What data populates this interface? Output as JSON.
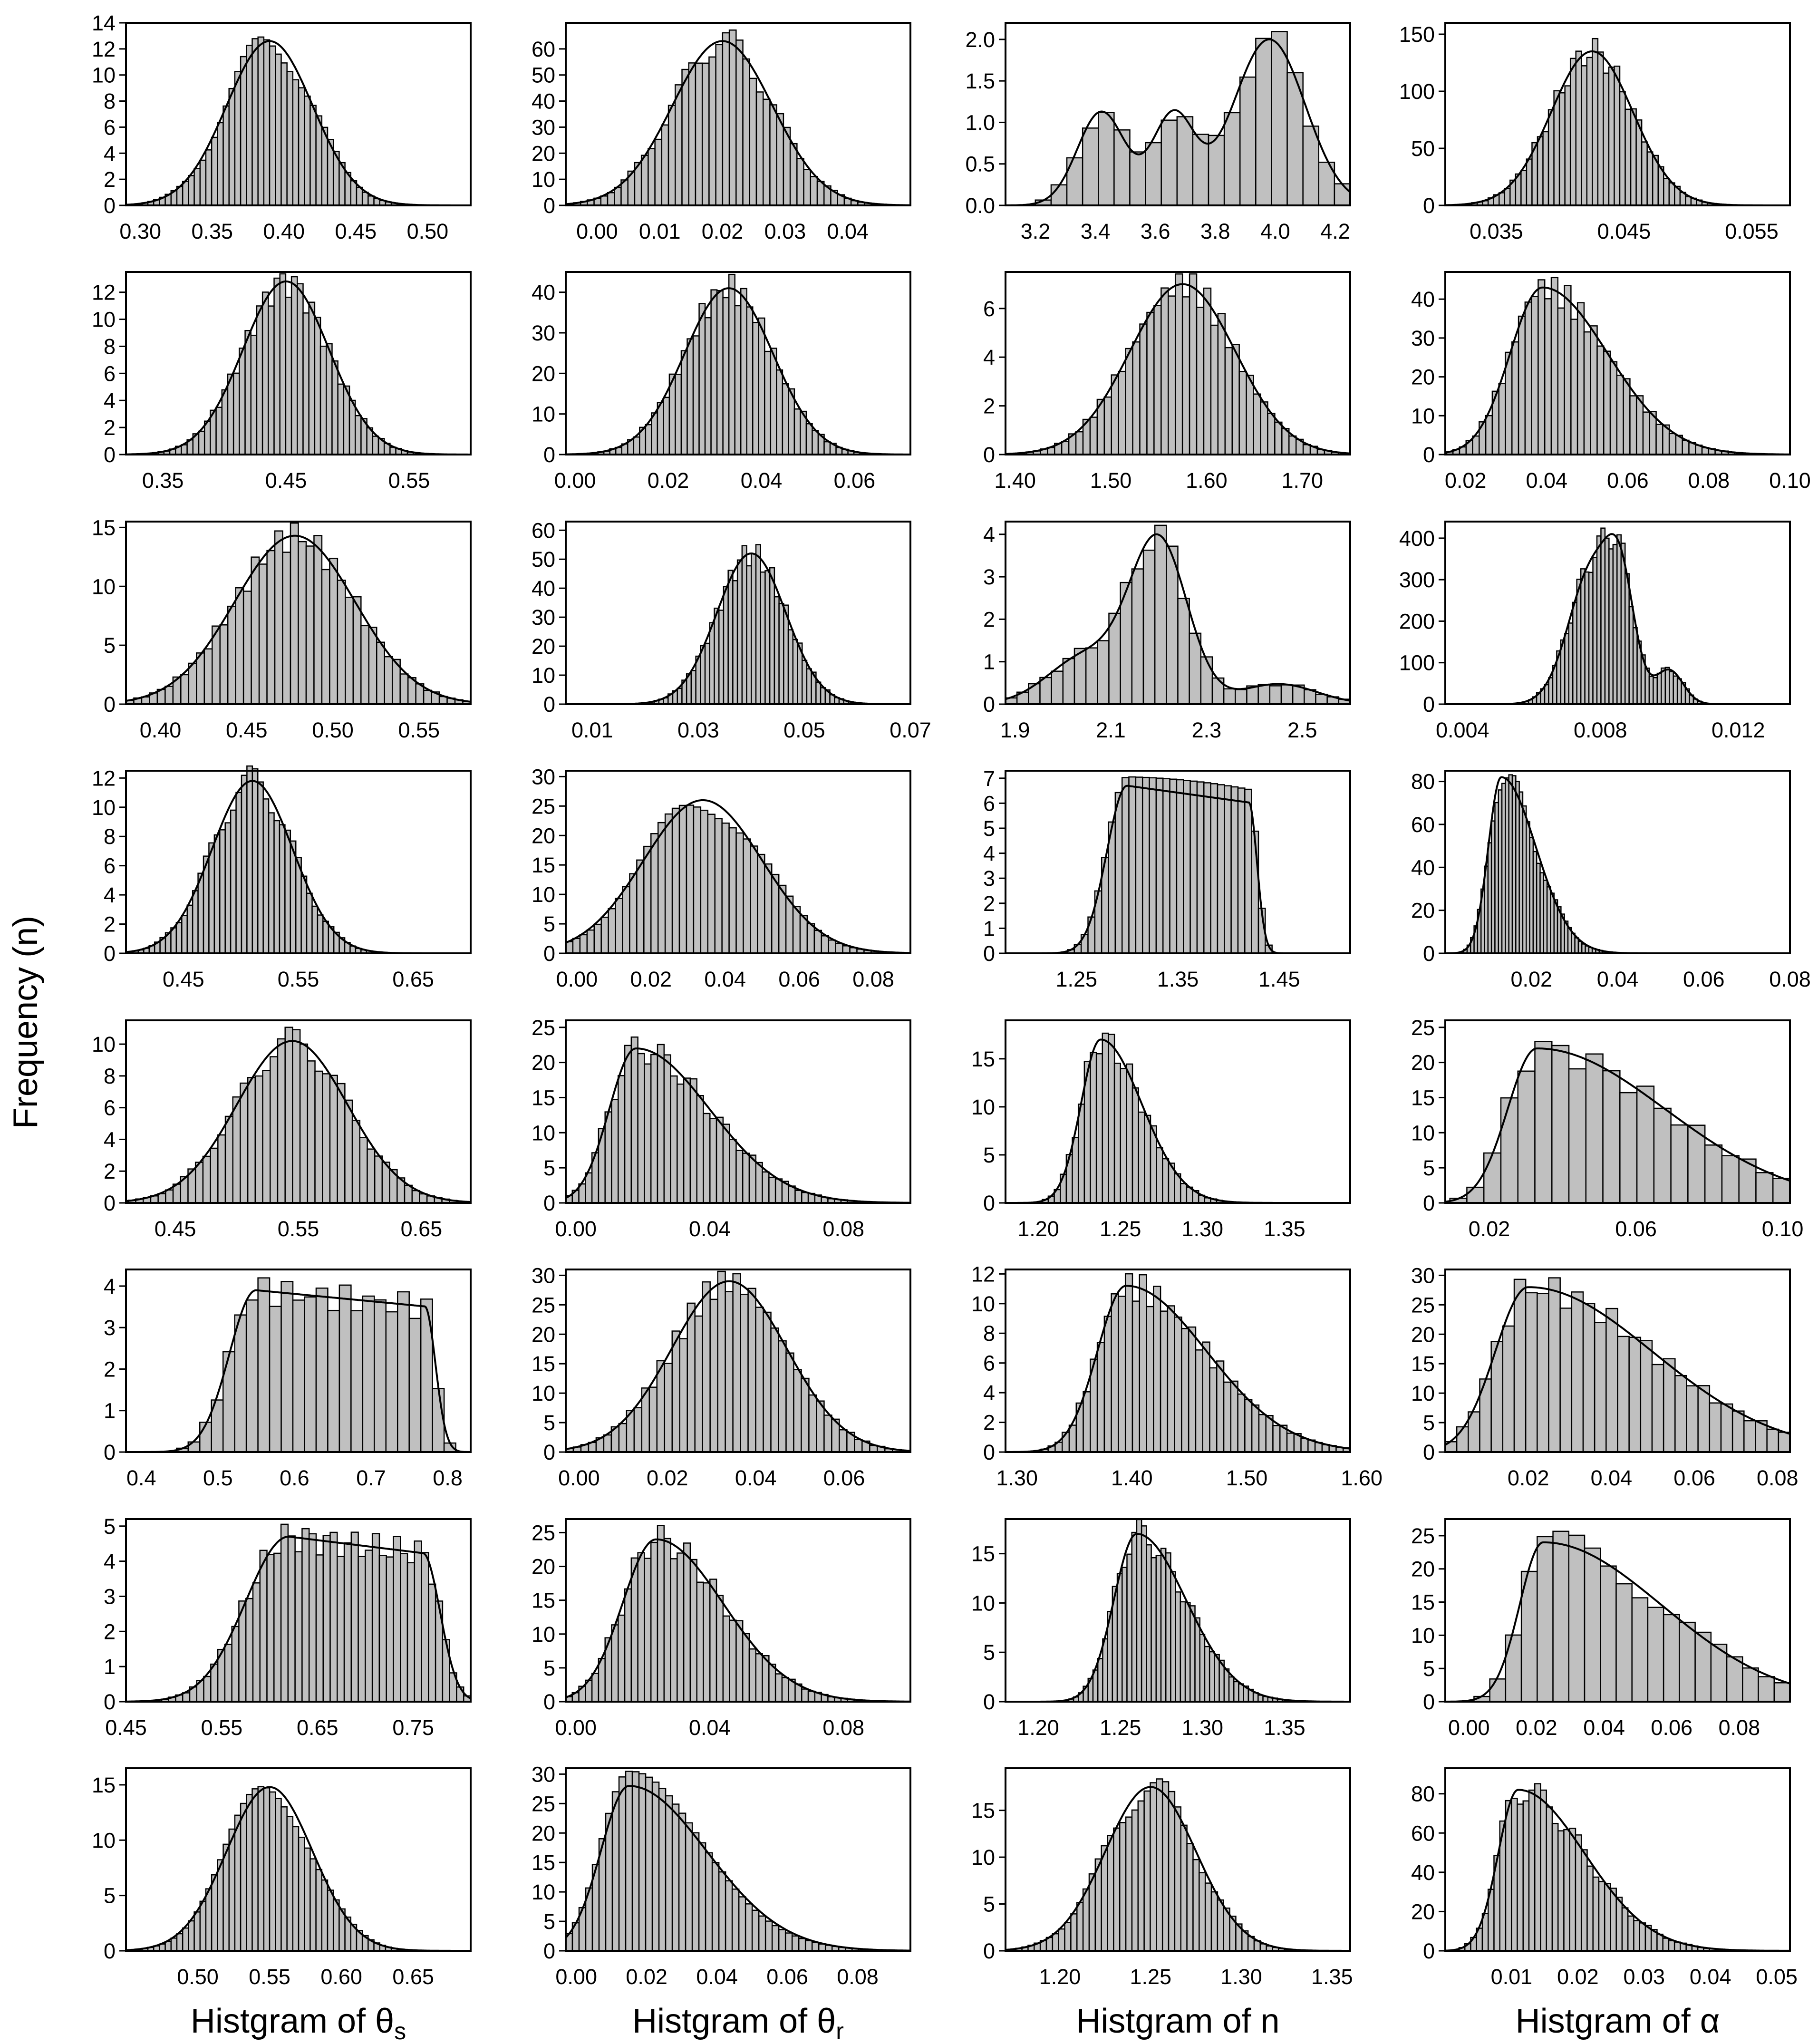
{
  "figure": {
    "ylabel": "Frequency (n)",
    "column_labels": [
      {
        "text": "Histgram of θ",
        "sub": "s"
      },
      {
        "text": "Histgram of θ",
        "sub": "r"
      },
      {
        "text": "Histgram of n",
        "sub": ""
      },
      {
        "text": "Histgram of α",
        "sub": ""
      }
    ]
  },
  "chart_data": [
    {
      "type": "bar",
      "row": 0,
      "col": 0,
      "shape": "normal",
      "params": [
        0.39,
        0.03
      ],
      "xlim": [
        0.29,
        0.53
      ],
      "ylim": [
        0,
        14
      ],
      "xticks": [
        0.3,
        0.35,
        0.4,
        0.45,
        0.5
      ],
      "xtick_labels": [
        "0.30",
        "0.35",
        "0.40",
        "0.45",
        "0.50"
      ],
      "yticks": [
        0,
        2,
        4,
        6,
        8,
        10,
        12,
        14
      ],
      "peak": 12.6,
      "bins": 44
    },
    {
      "type": "bar",
      "row": 0,
      "col": 1,
      "shape": "normal",
      "params": [
        0.02,
        0.008
      ],
      "xlim": [
        -0.005,
        0.05
      ],
      "ylim": [
        0,
        70
      ],
      "xticks": [
        0.0,
        0.01,
        0.02,
        0.03,
        0.04
      ],
      "xtick_labels": [
        "0.00",
        "0.01",
        "0.02",
        "0.03",
        "0.04"
      ],
      "yticks": [
        0,
        10,
        20,
        30,
        40,
        50,
        60
      ],
      "peak": 63,
      "bins": 44
    },
    {
      "type": "bar",
      "row": 0,
      "col": 2,
      "shape": "mixture",
      "params": [
        [
          3.42,
          0.08,
          1.1
        ],
        [
          3.66,
          0.07,
          1.05
        ],
        [
          3.98,
          0.12,
          1.95
        ]
      ],
      "xlim": [
        3.1,
        4.25
      ],
      "ylim": [
        0,
        2.2
      ],
      "xticks": [
        3.2,
        3.4,
        3.6,
        3.8,
        4.0,
        4.2
      ],
      "xtick_labels": [
        "3.2",
        "3.4",
        "3.6",
        "3.8",
        "4.0",
        "4.2"
      ],
      "yticks": [
        0,
        0.5,
        1.0,
        1.5,
        2.0
      ],
      "ytick_labels": [
        "0.0",
        "0.5",
        "1.0",
        "1.5",
        "2.0"
      ],
      "peak": 2.0,
      "bins": 20
    },
    {
      "type": "bar",
      "row": 0,
      "col": 3,
      "shape": "normal",
      "params": [
        0.0425,
        0.0032
      ],
      "xlim": [
        0.031,
        0.058
      ],
      "ylim": [
        0,
        160
      ],
      "xticks": [
        0.035,
        0.045,
        0.055
      ],
      "xtick_labels": [
        "0.035",
        "0.045",
        "0.055"
      ],
      "yticks": [
        0,
        50,
        100,
        150
      ],
      "peak": 135,
      "bins": 44
    },
    {
      "type": "bar",
      "row": 1,
      "col": 0,
      "shape": "normal",
      "params": [
        0.45,
        0.035
      ],
      "xlim": [
        0.32,
        0.6
      ],
      "ylim": [
        0,
        13.5
      ],
      "xticks": [
        0.35,
        0.45,
        0.55
      ],
      "xtick_labels": [
        "0.35",
        "0.45",
        "0.55"
      ],
      "yticks": [
        0,
        2,
        4,
        6,
        8,
        10,
        12
      ],
      "peak": 12.8,
      "bins": 44
    },
    {
      "type": "bar",
      "row": 1,
      "col": 1,
      "shape": "normal",
      "params": [
        0.033,
        0.0095
      ],
      "xlim": [
        -0.002,
        0.072
      ],
      "ylim": [
        0,
        45
      ],
      "xticks": [
        0.0,
        0.02,
        0.04,
        0.06
      ],
      "xtick_labels": [
        "0.00",
        "0.02",
        "0.04",
        "0.06"
      ],
      "yticks": [
        0,
        10,
        20,
        30,
        40
      ],
      "peak": 41,
      "bins": 44
    },
    {
      "type": "bar",
      "row": 1,
      "col": 2,
      "shape": "normal",
      "params": [
        1.575,
        0.055
      ],
      "xlim": [
        1.39,
        1.75
      ],
      "ylim": [
        0,
        7.5
      ],
      "xticks": [
        1.4,
        1.5,
        1.6,
        1.7
      ],
      "xtick_labels": [
        "1.40",
        "1.50",
        "1.60",
        "1.70"
      ],
      "yticks": [
        0,
        2,
        4,
        6
      ],
      "peak": 7.0,
      "bins": 44
    },
    {
      "type": "bar",
      "row": 1,
      "col": 3,
      "shape": "skew",
      "params": [
        0.039,
        0.008,
        0.016
      ],
      "xlim": [
        0.015,
        0.1
      ],
      "ylim": [
        0,
        47
      ],
      "xticks": [
        0.02,
        0.04,
        0.06,
        0.08,
        0.1
      ],
      "xtick_labels": [
        "0.02",
        "0.04",
        "0.06",
        "0.08",
        "0.10"
      ],
      "yticks": [
        0,
        10,
        20,
        30,
        40
      ],
      "peak": 43,
      "bins": 44
    },
    {
      "type": "bar",
      "row": 2,
      "col": 0,
      "shape": "normal",
      "params": [
        0.478,
        0.035
      ],
      "xlim": [
        0.38,
        0.58
      ],
      "ylim": [
        0,
        15.5
      ],
      "xticks": [
        0.4,
        0.45,
        0.5,
        0.55
      ],
      "xtick_labels": [
        "0.40",
        "0.45",
        "0.50",
        "0.55"
      ],
      "yticks": [
        0,
        5,
        10,
        15
      ],
      "peak": 14.3,
      "bins": 44
    },
    {
      "type": "bar",
      "row": 2,
      "col": 1,
      "shape": "normal",
      "params": [
        0.04,
        0.0065
      ],
      "xlim": [
        0.005,
        0.07
      ],
      "ylim": [
        0,
        63
      ],
      "xticks": [
        0.01,
        0.03,
        0.05,
        0.07
      ],
      "xtick_labels": [
        "0.01",
        "0.03",
        "0.05",
        "0.07"
      ],
      "yticks": [
        0,
        10,
        20,
        30,
        40,
        50,
        60
      ],
      "peak": 52,
      "bins": 44
    },
    {
      "type": "bar",
      "row": 2,
      "col": 2,
      "shape": "mixture",
      "params": [
        [
          2.2,
          0.06,
          4.0
        ],
        [
          2.05,
          0.08,
          1.2
        ],
        [
          2.45,
          0.08,
          0.5
        ]
      ],
      "xlim": [
        1.88,
        2.6
      ],
      "ylim": [
        0,
        4.3
      ],
      "xticks": [
        1.9,
        2.1,
        2.3,
        2.5
      ],
      "xtick_labels": [
        "1.9",
        "2.1",
        "2.3",
        "2.5"
      ],
      "yticks": [
        0,
        1,
        2,
        3,
        4
      ],
      "peak": 4.0,
      "bins": 30
    },
    {
      "type": "bar",
      "row": 2,
      "col": 3,
      "shape": "mixture",
      "params": [
        [
          0.0078,
          0.0007,
          330
        ],
        [
          0.0086,
          0.0004,
          200
        ],
        [
          0.01,
          0.0004,
          80
        ]
      ],
      "xlim": [
        0.0035,
        0.0135
      ],
      "ylim": [
        0,
        440
      ],
      "xticks": [
        0.004,
        0.008,
        0.012
      ],
      "xtick_labels": [
        "0.004",
        "0.008",
        "0.012"
      ],
      "yticks": [
        0,
        100,
        200,
        300,
        400
      ],
      "peak": 410,
      "bins": 44
    },
    {
      "type": "bar",
      "row": 3,
      "col": 0,
      "shape": "normal",
      "params": [
        0.51,
        0.035
      ],
      "xlim": [
        0.4,
        0.7
      ],
      "ylim": [
        0,
        12.5
      ],
      "xticks": [
        0.45,
        0.55,
        0.65
      ],
      "xtick_labels": [
        "0.45",
        "0.55",
        "0.65"
      ],
      "yticks": [
        0,
        2,
        4,
        6,
        8,
        10,
        12
      ],
      "peak": 11.8,
      "bins": 44
    },
    {
      "type": "bar",
      "row": 3,
      "col": 1,
      "shape": "normal",
      "params": [
        0.034,
        0.016
      ],
      "xlim": [
        -0.003,
        0.09
      ],
      "ylim": [
        0,
        31
      ],
      "xticks": [
        0.0,
        0.02,
        0.04,
        0.06,
        0.08
      ],
      "xtick_labels": [
        "0.00",
        "0.02",
        "0.04",
        "0.06",
        "0.08"
      ],
      "yticks": [
        0,
        5,
        10,
        15,
        20,
        25,
        30
      ],
      "peak": 26,
      "bins": 44
    },
    {
      "type": "bar",
      "row": 3,
      "col": 2,
      "shape": "plateau",
      "params": [
        1.3,
        1.42,
        0.02
      ],
      "xlim": [
        1.18,
        1.52
      ],
      "ylim": [
        0,
        7.3
      ],
      "xticks": [
        1.25,
        1.35,
        1.45
      ],
      "xtick_labels": [
        "1.25",
        "1.35",
        "1.45"
      ],
      "yticks": [
        0,
        1,
        2,
        3,
        4,
        5,
        6,
        7
      ],
      "peak": 6.7,
      "bins": 30
    },
    {
      "type": "bar",
      "row": 3,
      "col": 3,
      "shape": "skew",
      "params": [
        0.013,
        0.003,
        0.008
      ],
      "xlim": [
        0.0,
        0.08
      ],
      "ylim": [
        0,
        85
      ],
      "xticks": [
        0.02,
        0.04,
        0.06,
        0.08
      ],
      "xtick_labels": [
        "0.02",
        "0.04",
        "0.06",
        "0.08"
      ],
      "yticks": [
        0,
        20,
        40,
        60,
        80
      ],
      "peak": 82,
      "bins": 40
    },
    {
      "type": "bar",
      "row": 4,
      "col": 0,
      "shape": "normal",
      "params": [
        0.545,
        0.045
      ],
      "xlim": [
        0.41,
        0.69
      ],
      "ylim": [
        0,
        11.5
      ],
      "xticks": [
        0.45,
        0.55,
        0.65
      ],
      "xtick_labels": [
        "0.45",
        "0.55",
        "0.65"
      ],
      "yticks": [
        0,
        2,
        4,
        6,
        8,
        10
      ],
      "peak": 10.2,
      "bins": 44
    },
    {
      "type": "bar",
      "row": 4,
      "col": 1,
      "shape": "skew",
      "params": [
        0.018,
        0.008,
        0.022
      ],
      "xlim": [
        -0.003,
        0.1
      ],
      "ylim": [
        0,
        26
      ],
      "xticks": [
        0.0,
        0.04,
        0.08
      ],
      "xtick_labels": [
        "0.00",
        "0.04",
        "0.08"
      ],
      "yticks": [
        0,
        5,
        10,
        15,
        20,
        25
      ],
      "peak": 22,
      "bins": 44
    },
    {
      "type": "bar",
      "row": 4,
      "col": 2,
      "shape": "skew",
      "params": [
        1.238,
        0.012,
        0.025
      ],
      "xlim": [
        1.18,
        1.39
      ],
      "ylim": [
        0,
        19
      ],
      "xticks": [
        1.2,
        1.25,
        1.3,
        1.35
      ],
      "xtick_labels": [
        "1.20",
        "1.25",
        "1.30",
        "1.35"
      ],
      "yticks": [
        0,
        5,
        10,
        15
      ],
      "peak": 17,
      "bins": 30
    },
    {
      "type": "bar",
      "row": 4,
      "col": 3,
      "shape": "skew",
      "params": [
        0.033,
        0.008,
        0.035
      ],
      "xlim": [
        0.008,
        0.102
      ],
      "ylim": [
        0,
        26
      ],
      "xticks": [
        0.02,
        0.06,
        0.1
      ],
      "xtick_labels": [
        "0.02",
        "0.06",
        "0.10"
      ],
      "yticks": [
        0,
        5,
        10,
        15,
        20,
        25
      ],
      "peak": 22,
      "bins": 20
    },
    {
      "type": "bar",
      "row": 5,
      "col": 0,
      "shape": "plateau",
      "params": [
        0.55,
        0.77,
        0.035
      ],
      "xlim": [
        0.38,
        0.83
      ],
      "ylim": [
        0,
        4.4
      ],
      "xticks": [
        0.4,
        0.5,
        0.6,
        0.7,
        0.8
      ],
      "xtick_labels": [
        "0.4",
        "0.5",
        "0.6",
        "0.7",
        "0.8"
      ],
      "yticks": [
        0,
        1,
        2,
        3,
        4
      ],
      "peak": 3.9,
      "bins": 24
    },
    {
      "type": "bar",
      "row": 5,
      "col": 1,
      "shape": "normal",
      "params": [
        0.034,
        0.013
      ],
      "xlim": [
        -0.003,
        0.075
      ],
      "ylim": [
        0,
        31
      ],
      "xticks": [
        0.0,
        0.02,
        0.04,
        0.06
      ],
      "xtick_labels": [
        "0.00",
        "0.02",
        "0.04",
        "0.06"
      ],
      "yticks": [
        0,
        5,
        10,
        15,
        20,
        25,
        30
      ],
      "peak": 29,
      "bins": 44
    },
    {
      "type": "bar",
      "row": 5,
      "col": 2,
      "shape": "skew",
      "params": [
        1.395,
        0.025,
        0.07
      ],
      "xlim": [
        1.29,
        1.59
      ],
      "ylim": [
        0,
        12.3
      ],
      "xticks": [
        1.3,
        1.4,
        1.5,
        1.6
      ],
      "xtick_labels": [
        "1.30",
        "1.40",
        "1.50",
        "1.60"
      ],
      "yticks": [
        0,
        2,
        4,
        6,
        8,
        10,
        12
      ],
      "peak": 11.2,
      "bins": 44
    },
    {
      "type": "bar",
      "row": 5,
      "col": 3,
      "shape": "skew",
      "params": [
        0.02,
        0.008,
        0.03
      ],
      "xlim": [
        0.0,
        0.083
      ],
      "ylim": [
        0,
        31
      ],
      "xticks": [
        0.02,
        0.04,
        0.06,
        0.08
      ],
      "xtick_labels": [
        "0.02",
        "0.04",
        "0.06",
        "0.08"
      ],
      "yticks": [
        0,
        5,
        10,
        15,
        20,
        25,
        30
      ],
      "peak": 28,
      "bins": 30
    },
    {
      "type": "bar",
      "row": 6,
      "col": 0,
      "shape": "plateau",
      "params": [
        0.62,
        0.76,
        0.045
      ],
      "xlim": [
        0.45,
        0.81
      ],
      "ylim": [
        0,
        5.2
      ],
      "xticks": [
        0.45,
        0.55,
        0.65,
        0.75
      ],
      "xtick_labels": [
        "0.45",
        "0.55",
        "0.65",
        "0.75"
      ],
      "yticks": [
        0,
        1,
        2,
        3,
        4,
        5
      ],
      "peak": 4.7,
      "bins": 44
    },
    {
      "type": "bar",
      "row": 6,
      "col": 1,
      "shape": "skew",
      "params": [
        0.024,
        0.01,
        0.02
      ],
      "xlim": [
        -0.003,
        0.1
      ],
      "ylim": [
        0,
        27
      ],
      "xticks": [
        0.0,
        0.04,
        0.08
      ],
      "xtick_labels": [
        "0.00",
        "0.04",
        "0.08"
      ],
      "yticks": [
        0,
        5,
        10,
        15,
        20,
        25
      ],
      "peak": 24,
      "bins": 44
    },
    {
      "type": "bar",
      "row": 6,
      "col": 2,
      "shape": "skew",
      "params": [
        1.26,
        0.014,
        0.03
      ],
      "xlim": [
        1.18,
        1.39
      ],
      "ylim": [
        0,
        18.5
      ],
      "xticks": [
        1.2,
        1.25,
        1.3,
        1.35
      ],
      "xtick_labels": [
        "1.20",
        "1.25",
        "1.30",
        "1.35"
      ],
      "yticks": [
        0,
        5,
        10,
        15
      ],
      "peak": 17,
      "bins": 44
    },
    {
      "type": "bar",
      "row": 6,
      "col": 3,
      "shape": "skew",
      "params": [
        0.022,
        0.007,
        0.035
      ],
      "xlim": [
        -0.007,
        0.095
      ],
      "ylim": [
        0,
        27.5
      ],
      "xticks": [
        0.0,
        0.02,
        0.04,
        0.06,
        0.08
      ],
      "xtick_labels": [
        "0.00",
        "0.02",
        "0.04",
        "0.06",
        "0.08"
      ],
      "yticks": [
        0,
        5,
        10,
        15,
        20,
        25
      ],
      "peak": 24,
      "bins": 20
    },
    {
      "type": "bar",
      "row": 7,
      "col": 0,
      "shape": "normal",
      "params": [
        0.55,
        0.03
      ],
      "xlim": [
        0.45,
        0.69
      ],
      "ylim": [
        0,
        16.5
      ],
      "xticks": [
        0.5,
        0.55,
        0.6,
        0.65
      ],
      "xtick_labels": [
        "0.50",
        "0.55",
        "0.60",
        "0.65"
      ],
      "yticks": [
        0,
        5,
        10,
        15
      ],
      "peak": 14.8,
      "bins": 44
    },
    {
      "type": "bar",
      "row": 7,
      "col": 1,
      "shape": "skew",
      "params": [
        0.015,
        0.008,
        0.022
      ],
      "xlim": [
        -0.003,
        0.095
      ],
      "ylim": [
        0,
        31
      ],
      "xticks": [
        0.0,
        0.02,
        0.04,
        0.06,
        0.08
      ],
      "xtick_labels": [
        "0.00",
        "0.02",
        "0.04",
        "0.06",
        "0.08"
      ],
      "yticks": [
        0,
        5,
        10,
        15,
        20,
        25,
        30
      ],
      "peak": 28,
      "bins": 44
    },
    {
      "type": "bar",
      "row": 7,
      "col": 2,
      "shape": "normal",
      "params": [
        1.25,
        0.025
      ],
      "xlim": [
        1.17,
        1.36
      ],
      "ylim": [
        0,
        19.5
      ],
      "xticks": [
        1.2,
        1.25,
        1.3,
        1.35
      ],
      "xtick_labels": [
        "1.20",
        "1.25",
        "1.30",
        "1.35"
      ],
      "yticks": [
        0,
        5,
        10,
        15
      ],
      "peak": 17.5,
      "bins": 44
    },
    {
      "type": "bar",
      "row": 7,
      "col": 3,
      "shape": "skew",
      "params": [
        0.011,
        0.003,
        0.01
      ],
      "xlim": [
        0.0,
        0.052
      ],
      "ylim": [
        0,
        93
      ],
      "xticks": [
        0.01,
        0.02,
        0.03,
        0.04,
        0.05
      ],
      "xtick_labels": [
        "0.01",
        "0.02",
        "0.03",
        "0.04",
        "0.05"
      ],
      "yticks": [
        0,
        20,
        40,
        60,
        80
      ],
      "peak": 82,
      "bins": 44
    }
  ]
}
